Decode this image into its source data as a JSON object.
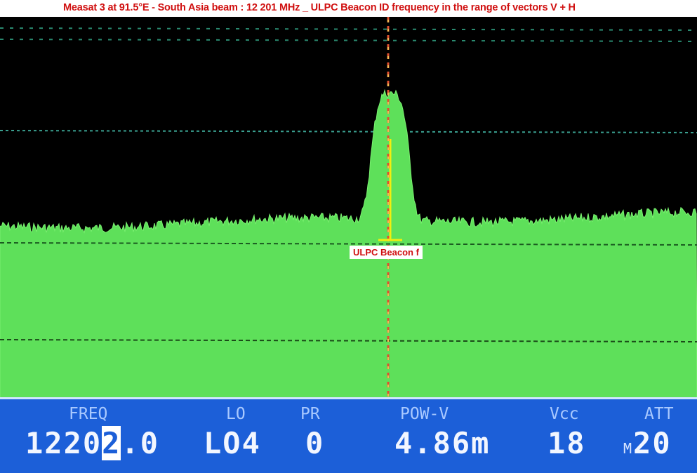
{
  "title": "Measat 3 at 91.5°E - South Asia beam : 12 201 MHz _ ULPC Beacon ID frequency in the range of vectors V + H",
  "annotation": "ULPC Beacon f",
  "colors": {
    "trace_fill": "#5ee05a",
    "background": "#000000",
    "status_bar": "#1c5fd8",
    "marker": "#e8e020",
    "annotation_text": "#d01010"
  },
  "status": {
    "freq": {
      "label": "FREQ",
      "value_before": "1220",
      "value_cursor": "2",
      "value_after": ".0"
    },
    "lo": {
      "label": "LO",
      "value": "LO4"
    },
    "pr": {
      "label": "PR",
      "value": "0"
    },
    "pow": {
      "label": "POW-V",
      "value": "4.86m"
    },
    "vcc": {
      "label": "Vcc",
      "value": "18"
    },
    "att": {
      "label": "ATT",
      "prefix": "M",
      "value": "20"
    }
  }
}
